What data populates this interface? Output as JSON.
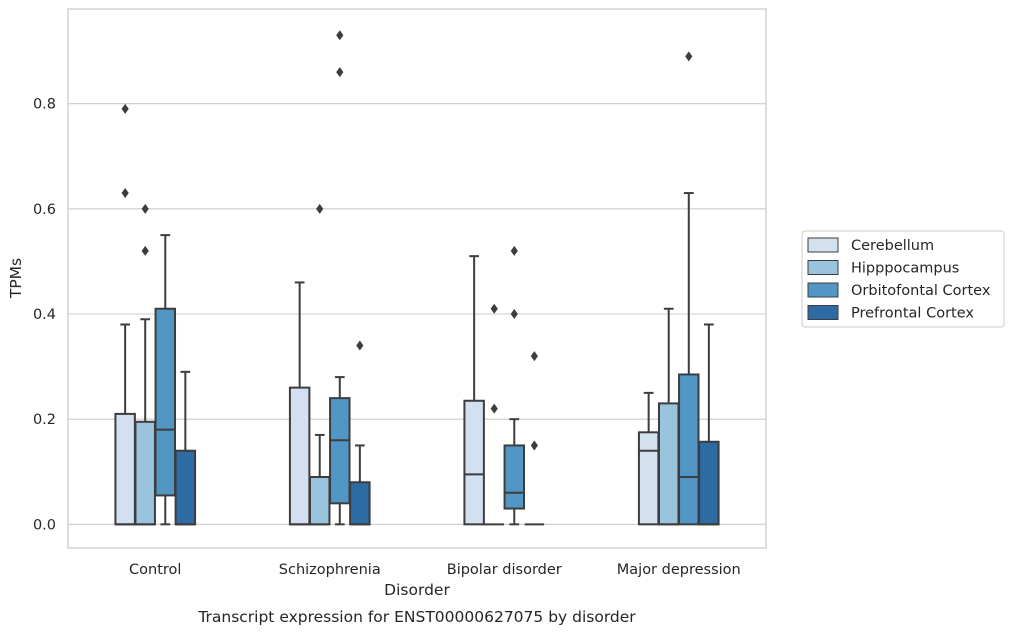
{
  "chart_data": {
    "type": "box",
    "title": "Transcript expression for ENST00000627075 by disorder",
    "xlabel": "Disorder",
    "ylabel": "TPMs",
    "categories": [
      "Control",
      "Schizophrenia",
      "Bipolar disorder",
      "Major depression"
    ],
    "ylim": [
      -0.045,
      0.98
    ],
    "yticks": [
      "0.0",
      "0.2",
      "0.4",
      "0.6",
      "0.8"
    ],
    "ytick_values": [
      0.0,
      0.2,
      0.4,
      0.6,
      0.8
    ],
    "grid": "horizontal",
    "legend_position": "right",
    "series": [
      {
        "name": "Cerebellum",
        "color": "#d3e0ef",
        "boxes": [
          {
            "q1": 0.0,
            "median": 0.0,
            "q3": 0.21,
            "whisker_low": 0.0,
            "whisker_high": 0.38,
            "outliers": [
              0.63,
              0.79
            ]
          },
          {
            "q1": 0.0,
            "median": 0.0,
            "q3": 0.26,
            "whisker_low": 0.0,
            "whisker_high": 0.46,
            "outliers": []
          },
          {
            "q1": 0.0,
            "median": 0.095,
            "q3": 0.235,
            "whisker_low": 0.0,
            "whisker_high": 0.51,
            "outliers": []
          },
          {
            "q1": 0.0,
            "median": 0.14,
            "q3": 0.175,
            "whisker_low": 0.0,
            "whisker_high": 0.25,
            "outliers": []
          }
        ]
      },
      {
        "name": "Hipppocampus",
        "color": "#9ac3dd",
        "boxes": [
          {
            "q1": 0.0,
            "median": 0.0,
            "q3": 0.195,
            "whisker_low": 0.0,
            "whisker_high": 0.39,
            "outliers": [
              0.52,
              0.6
            ]
          },
          {
            "q1": 0.0,
            "median": 0.0,
            "q3": 0.09,
            "whisker_low": 0.0,
            "whisker_high": 0.17,
            "outliers": [
              0.6
            ]
          },
          {
            "q1": 0.0,
            "median": 0.0,
            "q3": 0.0,
            "whisker_low": 0.0,
            "whisker_high": 0.0,
            "outliers": [
              0.22,
              0.41
            ]
          },
          {
            "q1": 0.0,
            "median": 0.0,
            "q3": 0.23,
            "whisker_low": 0.0,
            "whisker_high": 0.41,
            "outliers": []
          }
        ]
      },
      {
        "name": "Orbitofontal Cortex",
        "color": "#5196c5",
        "boxes": [
          {
            "q1": 0.055,
            "median": 0.18,
            "q3": 0.41,
            "whisker_low": 0.0,
            "whisker_high": 0.55,
            "outliers": []
          },
          {
            "q1": 0.04,
            "median": 0.16,
            "q3": 0.24,
            "whisker_low": 0.0,
            "whisker_high": 0.28,
            "outliers": [
              0.86,
              0.93
            ]
          },
          {
            "q1": 0.03,
            "median": 0.06,
            "q3": 0.15,
            "whisker_low": 0.0,
            "whisker_high": 0.2,
            "outliers": [
              0.4,
              0.52
            ]
          },
          {
            "q1": 0.0,
            "median": 0.09,
            "q3": 0.285,
            "whisker_low": 0.0,
            "whisker_high": 0.63,
            "outliers": [
              0.89
            ]
          }
        ]
      },
      {
        "name": "Prefrontal Cortex",
        "color": "#2c6ba4",
        "boxes": [
          {
            "q1": 0.0,
            "median": 0.0,
            "q3": 0.14,
            "whisker_low": 0.0,
            "whisker_high": 0.29,
            "outliers": []
          },
          {
            "q1": 0.0,
            "median": 0.0,
            "q3": 0.08,
            "whisker_low": 0.0,
            "whisker_high": 0.15,
            "outliers": [
              0.34
            ]
          },
          {
            "q1": 0.0,
            "median": 0.0,
            "q3": 0.0,
            "whisker_low": 0.0,
            "whisker_high": 0.0,
            "outliers": [
              0.15,
              0.32
            ]
          },
          {
            "q1": 0.0,
            "median": 0.0,
            "q3": 0.157,
            "whisker_low": 0.0,
            "whisker_high": 0.38,
            "outliers": []
          }
        ]
      }
    ]
  }
}
